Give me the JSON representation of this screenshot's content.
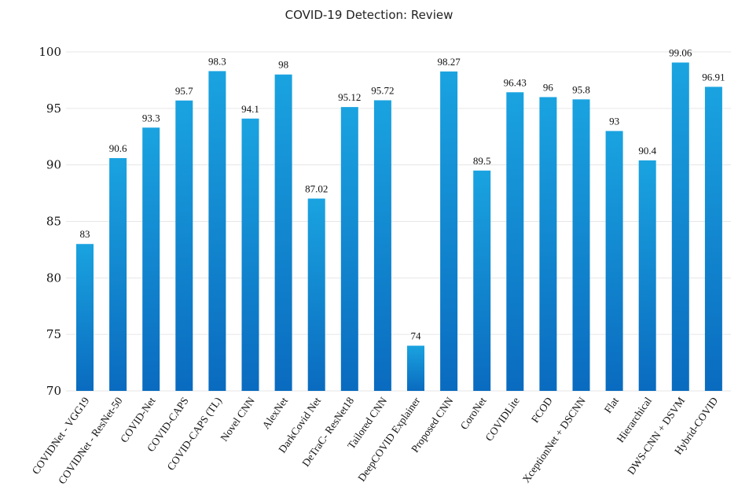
{
  "chart_data": {
    "type": "bar",
    "title": "COVID-19 Detection:  Review",
    "xlabel": "",
    "ylabel": "",
    "ylim": [
      70,
      100
    ],
    "yticks": [
      70,
      75,
      80,
      85,
      90,
      95,
      100
    ],
    "grid": true,
    "bar_color_top": "#1aa3e0",
    "bar_color_bottom": "#0a6bbf",
    "categories": [
      "COVIDNet - VGG19",
      "COVIDNet - ResNet-50",
      "COVID-Net",
      "COVID-CAPS",
      "COVID-CAPS (TL)",
      "Novel CNN",
      "AlexNet",
      "DarkCovid Net",
      "DeTraC- ResNet18",
      "Tailored CNN",
      "DeepCOVID Explainer",
      "Proposed CNN",
      "CoroNet",
      "COVIDLite",
      "FCOD",
      "XceptionNet + DSCNN",
      "Flat",
      "Hierarchical",
      "DWS-CNN + DSVM",
      "Hybrid-COVID"
    ],
    "values": [
      83,
      90.6,
      93.3,
      95.7,
      98.3,
      94.1,
      98,
      87.02,
      95.12,
      95.72,
      74,
      98.27,
      89.5,
      96.43,
      96,
      95.8,
      93,
      90.4,
      99.06,
      96.91
    ],
    "value_labels": [
      "83",
      "90.6",
      "93.3",
      "95.7",
      "98.3",
      "94.1",
      "98",
      "87.02",
      "95.12",
      "95.72",
      "74",
      "98.27",
      "89.5",
      "96.43",
      "96",
      "95.8",
      "93",
      "90.4",
      "99.06",
      "96.91"
    ]
  }
}
